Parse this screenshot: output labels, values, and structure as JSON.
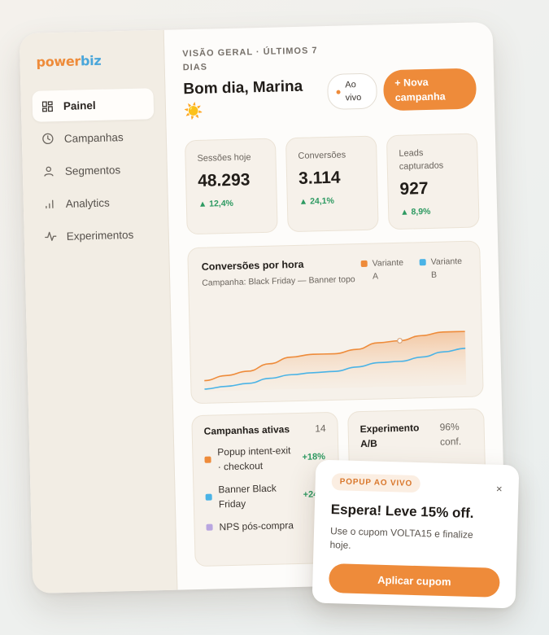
{
  "brand": {
    "logo_prefix": "power",
    "logo_suffix": "biz"
  },
  "sidebar": {
    "items": [
      {
        "label": "Painel",
        "icon": "dashboard-icon",
        "active": true
      },
      {
        "label": "Campanhas",
        "icon": "clock-icon",
        "active": false
      },
      {
        "label": "Segmentos",
        "icon": "user-icon",
        "active": false
      },
      {
        "label": "Analytics",
        "icon": "bar-chart-icon",
        "active": false
      },
      {
        "label": "Experimentos",
        "icon": "pulse-icon",
        "active": false
      }
    ]
  },
  "header": {
    "eyebrow": "VISÃO GERAL · ÚLTIMOS 7 DIAS",
    "greeting": "Bom dia, Marina ☀️",
    "live_label": "Ao vivo",
    "new_campaign_label": "+ Nova campanha"
  },
  "kpis": [
    {
      "label": "Sessões hoje",
      "value": "48.293",
      "delta": "▲ 12,4%"
    },
    {
      "label": "Conversões",
      "value": "3.114",
      "delta": "▲ 24,1%"
    },
    {
      "label": "Leads capturados",
      "value": "927",
      "delta": "▲ 8,9%"
    }
  ],
  "chart_data": {
    "type": "area",
    "title": "Conversões por hora",
    "subtitle": "Campanha: Black Friday — Banner topo",
    "x": [
      0,
      1,
      2,
      3,
      4,
      5,
      6,
      7,
      8,
      9,
      10,
      11,
      12
    ],
    "series": [
      {
        "name": "Variante A",
        "color": "#ee8b3a",
        "values": [
          14,
          20,
          25,
          34,
          42,
          45,
          45,
          50,
          58,
          60,
          66,
          70,
          70
        ]
      },
      {
        "name": "Variante B",
        "color": "#4ab3e6",
        "values": [
          3,
          6,
          9,
          15,
          19,
          21,
          22,
          27,
          32,
          33,
          38,
          44,
          48
        ]
      }
    ],
    "ylim": [
      0,
      100
    ],
    "grid": false,
    "legend": "top-right",
    "highlight_index": 9
  },
  "active_campaigns": {
    "title": "Campanhas ativas",
    "count": "14",
    "items": [
      {
        "name": "Popup intent-exit · checkout",
        "delta": "+18%",
        "color": "#ee8b3a"
      },
      {
        "name": "Banner Black Friday",
        "delta": "+24%",
        "color": "#4ab3e6"
      },
      {
        "name": "NPS pós-compra",
        "delta": "",
        "color": "#b9a6e0"
      }
    ]
  },
  "experiment": {
    "title": "Experimento A/B",
    "confidence": "96% conf."
  },
  "popup": {
    "badge": "POPUP AO VIVO",
    "title": "Espera! Leve 15% off.",
    "body": "Use o cupom VOLTA15 e finalize hoje.",
    "button": "Aplicar cupom",
    "close": "×"
  }
}
